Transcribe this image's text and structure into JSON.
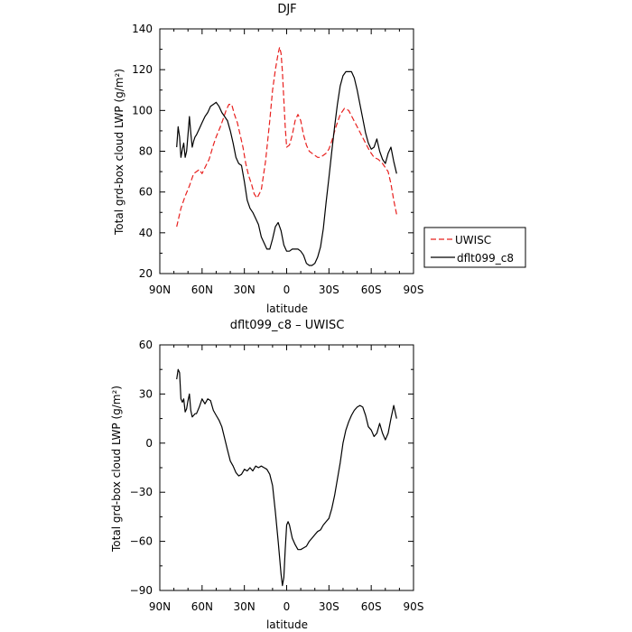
{
  "chart_data": [
    {
      "type": "line",
      "title": "DJF",
      "xlabel": "latitude",
      "ylabel": "Total grd-box cloud LWP (g/m²)",
      "x_direction": "north-to-south",
      "xlim": [
        90,
        -90
      ],
      "xticks": [
        90,
        60,
        30,
        0,
        -30,
        -60,
        -90
      ],
      "xtick_labels": [
        "90N",
        "60N",
        "30N",
        "0",
        "30S",
        "60S",
        "90S"
      ],
      "ylim": [
        20,
        140
      ],
      "yticks": [
        20,
        40,
        60,
        80,
        100,
        120,
        140
      ],
      "ytick_labels": [
        "20",
        "40",
        "60",
        "80",
        "100",
        "120",
        "140"
      ],
      "grid": false,
      "legend_position": "outside-right",
      "series": [
        {
          "name": "UWISC",
          "color": "#e8201e",
          "dash": "dashed",
          "x": [
            78,
            75,
            72,
            69,
            66,
            64,
            62,
            60,
            58,
            55,
            52,
            50,
            47,
            45,
            43,
            41,
            39,
            37,
            35,
            33,
            31,
            29,
            27,
            25,
            23,
            21,
            18,
            15,
            12,
            10,
            8,
            6,
            5,
            4,
            3,
            2,
            1,
            0,
            -2,
            -4,
            -6,
            -8,
            -10,
            -12,
            -14,
            -16,
            -18,
            -20,
            -22,
            -24,
            -26,
            -28,
            -30,
            -32,
            -35,
            -38,
            -41,
            -44,
            -47,
            -50,
            -53,
            -56,
            -59,
            -62,
            -65,
            -68,
            -70,
            -72,
            -74,
            -76,
            -78
          ],
          "y": [
            43,
            52,
            58,
            63,
            69,
            70,
            71,
            69,
            72,
            76,
            83,
            87,
            92,
            96,
            100,
            103,
            103,
            98,
            94,
            88,
            82,
            74,
            68,
            64,
            59,
            57,
            61,
            75,
            95,
            110,
            120,
            128,
            131,
            128,
            119,
            105,
            92,
            82,
            83,
            88,
            95,
            98,
            95,
            88,
            83,
            80,
            79,
            78,
            77,
            77,
            78,
            79,
            81,
            85,
            92,
            98,
            101,
            100,
            96,
            92,
            88,
            84,
            80,
            77,
            76,
            74,
            72,
            70,
            64,
            56,
            49
          ]
        },
        {
          "name": "dflt099_c8",
          "color": "#000000",
          "dash": "solid",
          "x": [
            78,
            77,
            76,
            75,
            74,
            73,
            72,
            71,
            70,
            69,
            68,
            67,
            66,
            65,
            64,
            62,
            60,
            58,
            56,
            54,
            52,
            50,
            48,
            46,
            44,
            42,
            40,
            38,
            36,
            34,
            32,
            30,
            28,
            26,
            24,
            22,
            20,
            18,
            16,
            14,
            12,
            10,
            8,
            6,
            4,
            2,
            0,
            -2,
            -4,
            -6,
            -8,
            -10,
            -12,
            -14,
            -16,
            -18,
            -20,
            -22,
            -24,
            -26,
            -28,
            -30,
            -32,
            -34,
            -36,
            -38,
            -40,
            -42,
            -44,
            -46,
            -48,
            -50,
            -52,
            -54,
            -56,
            -58,
            -60,
            -62,
            -64,
            -66,
            -68,
            -70,
            -72,
            -74,
            -76,
            -78
          ],
          "y": [
            82,
            92,
            87,
            77,
            81,
            84,
            77,
            80,
            88,
            97,
            89,
            82,
            85,
            87,
            88,
            91,
            94,
            97,
            99,
            102,
            103,
            104,
            102,
            99,
            97,
            95,
            90,
            84,
            77,
            74,
            73,
            65,
            56,
            52,
            50,
            47,
            44,
            38,
            35,
            32,
            32,
            37,
            43,
            45,
            41,
            34,
            31,
            31,
            32,
            32,
            32,
            31,
            29,
            25,
            24,
            24,
            25,
            28,
            33,
            42,
            55,
            67,
            80,
            92,
            103,
            112,
            117,
            119,
            119,
            119,
            116,
            110,
            103,
            96,
            89,
            84,
            81,
            82,
            86,
            80,
            76,
            74,
            79,
            82,
            75,
            69
          ]
        }
      ]
    },
    {
      "type": "line",
      "title": "dflt099_c8 – UWISC",
      "xlabel": "latitude",
      "ylabel": "Total grd-box cloud LWP (g/m²)",
      "x_direction": "north-to-south",
      "xlim": [
        90,
        -90
      ],
      "xticks": [
        90,
        60,
        30,
        0,
        -30,
        -60,
        -90
      ],
      "xtick_labels": [
        "90N",
        "60N",
        "30N",
        "0",
        "30S",
        "60S",
        "90S"
      ],
      "ylim": [
        -90,
        60
      ],
      "yticks": [
        -90,
        -60,
        -30,
        0,
        30,
        60
      ],
      "ytick_labels": [
        "−90",
        "−60",
        "−30",
        "0",
        "30",
        "60"
      ],
      "grid": false,
      "series": [
        {
          "color": "#000000",
          "dash": "solid",
          "x": [
            78,
            77,
            76,
            75,
            74,
            73,
            72,
            71,
            70,
            69,
            68,
            67,
            66,
            65,
            64,
            62,
            60,
            58,
            56,
            54,
            52,
            50,
            48,
            46,
            44,
            42,
            40,
            38,
            36,
            34,
            32,
            30,
            28,
            26,
            24,
            22,
            20,
            18,
            16,
            14,
            12,
            10,
            8,
            6,
            5,
            4,
            3,
            2,
            1,
            0,
            -1,
            -2,
            -4,
            -6,
            -8,
            -10,
            -12,
            -14,
            -16,
            -18,
            -20,
            -22,
            -24,
            -26,
            -28,
            -30,
            -32,
            -34,
            -36,
            -38,
            -40,
            -42,
            -44,
            -46,
            -48,
            -50,
            -52,
            -54,
            -56,
            -58,
            -60,
            -62,
            -64,
            -66,
            -68,
            -70,
            -72,
            -74,
            -76,
            -78
          ],
          "y": [
            39,
            45,
            43,
            27,
            25,
            27,
            19,
            21,
            26,
            30,
            20,
            16,
            17,
            18,
            18,
            22,
            27,
            24,
            27,
            26,
            20,
            17,
            14,
            10,
            3,
            -4,
            -11,
            -14,
            -18,
            -20,
            -19,
            -16,
            -17,
            -15,
            -17,
            -14,
            -15,
            -14,
            -15,
            -16,
            -19,
            -26,
            -42,
            -60,
            -70,
            -80,
            -87,
            -82,
            -65,
            -50,
            -48,
            -50,
            -58,
            -62,
            -65,
            -65,
            -64,
            -63,
            -60,
            -58,
            -56,
            -54,
            -53,
            -50,
            -48,
            -46,
            -40,
            -32,
            -22,
            -12,
            0,
            8,
            13,
            17,
            20,
            22,
            23,
            22,
            17,
            10,
            8,
            4,
            6,
            12,
            6,
            2,
            6,
            15,
            23,
            15
          ]
        }
      ]
    }
  ]
}
